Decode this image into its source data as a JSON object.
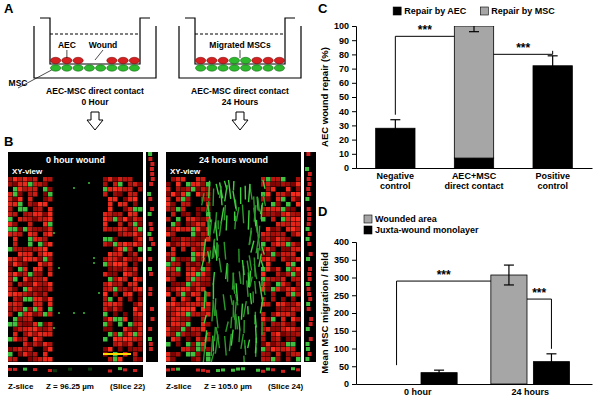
{
  "panel_labels": [
    "A",
    "B",
    "C",
    "D"
  ],
  "diagram": {
    "wells": [
      {
        "aec": "AEC",
        "wound": "Wound",
        "msc": "MSC",
        "caption": [
          "AEC-MSC direct contact",
          "0 Hour"
        ]
      },
      {
        "migrated": "Migrated MSCs",
        "caption": [
          "AEC-MSC direct contact",
          "24 Hours"
        ]
      }
    ]
  },
  "images": [
    {
      "title": "0 hour wound",
      "view": "XY-view",
      "slice_view": "Z-slice",
      "z": "Z = 96.25 µm",
      "slice": "(Slice 22)"
    },
    {
      "title": "24 hours wound",
      "view": "XY-view",
      "slice_view": "Z-slice",
      "z": "Z = 105.0 µm",
      "slice": "(Slice 24)"
    }
  ],
  "chart_data": [
    {
      "type": "bar",
      "stacked": true,
      "legend": "top",
      "categories": [
        "Negative control",
        "AEC+MSC direct contact",
        "Positive control"
      ],
      "series": [
        {
          "name": "Repair by AEC",
          "color": "#000000",
          "values": [
            28,
            7,
            72
          ],
          "errors": [
            6,
            4,
            7
          ]
        },
        {
          "name": "Repair by MSC",
          "color": "#a6a6a6",
          "values": [
            null,
            93,
            null
          ],
          "errors": [
            null,
            4,
            null
          ]
        }
      ],
      "ylabel": "AEC wound repair (%)",
      "ylim": [
        0,
        100
      ],
      "yticks": [
        0,
        10,
        20,
        30,
        40,
        50,
        60,
        70,
        80,
        90,
        100
      ],
      "annotations": [
        {
          "text": "***",
          "from": {
            "category": "Negative control"
          },
          "to": {
            "category": "AEC+MSC direct contact"
          }
        },
        {
          "text": "***",
          "from": {
            "category": "AEC+MSC direct contact"
          },
          "to": {
            "category": "Positive control"
          }
        }
      ]
    },
    {
      "type": "bar",
      "stacked": false,
      "legend": "upper left",
      "categories": [
        "0 hour",
        "24 hours"
      ],
      "series": [
        {
          "name": "Wounded area",
          "color": "#a6a6a6",
          "values": [
            0,
            307
          ],
          "errors": [
            null,
            28
          ]
        },
        {
          "name": "Juxta-wound monolayer",
          "color": "#000000",
          "values": [
            32,
            63
          ],
          "errors": [
            7,
            22
          ]
        }
      ],
      "ylabel": "Mean MSC migration / field",
      "ylim": [
        0,
        400
      ],
      "yticks": [
        0,
        50,
        100,
        150,
        200,
        250,
        300,
        350,
        400
      ],
      "annotations": [
        {
          "text": "***",
          "from": {
            "category": "0 hour",
            "series": "Wounded area"
          },
          "to": {
            "category": "24 hours",
            "series": "Wounded area"
          }
        },
        {
          "text": "***",
          "from": {
            "category": "24 hours",
            "series": "Wounded area"
          },
          "to": {
            "category": "24 hours",
            "series": "Juxta-wound monolayer"
          }
        }
      ]
    }
  ]
}
